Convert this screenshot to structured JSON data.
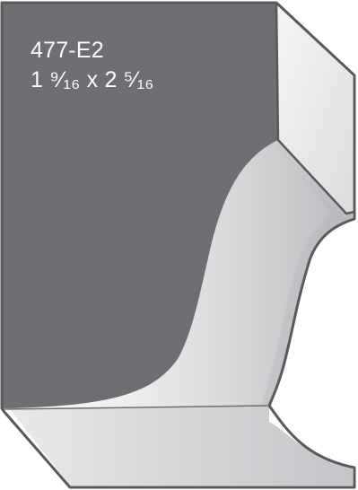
{
  "profile": {
    "part_number": "477-E2",
    "dimensions": "1 ⁹⁄₁₆ x 2 ⁵⁄₁₆"
  },
  "colors": {
    "background": "#ffffff",
    "block_fill": "#6d6e71",
    "block_outline": "#4d4e51",
    "face_light": "#f1f1f2",
    "face_mid": "#d6d7d9",
    "face_dark": "#a7a9ac",
    "label_text": "#ffffff"
  }
}
